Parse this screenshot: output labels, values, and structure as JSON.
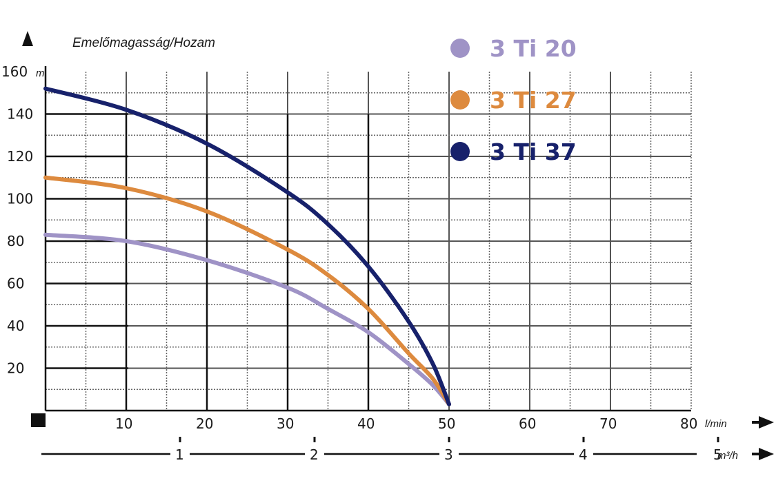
{
  "chart_data": {
    "type": "line",
    "title": "",
    "ylabel": "Emelőmagasság/Hozam",
    "yunit": "m",
    "ylim": [
      0,
      160
    ],
    "yticks": [
      20,
      40,
      60,
      80,
      100,
      120,
      140,
      160
    ],
    "xlabel": "",
    "xunit": "l/min",
    "xlim": [
      0,
      80
    ],
    "xticks": [
      10,
      20,
      30,
      40,
      50,
      60,
      70,
      80
    ],
    "x2unit": "m³/h",
    "x2ticks": [
      1,
      2,
      3,
      4,
      5
    ],
    "grid": true,
    "legend_position": "top-right",
    "series": [
      {
        "name": "3 Ti 20",
        "color": "#9f93c6",
        "x": [
          0,
          10,
          20,
          30,
          35,
          40,
          45,
          48,
          50
        ],
        "y": [
          83,
          80,
          71,
          58,
          48,
          37,
          22,
          12,
          3
        ]
      },
      {
        "name": "3 Ti 27",
        "color": "#dd8a3e",
        "x": [
          0,
          10,
          20,
          30,
          35,
          40,
          45,
          48,
          50
        ],
        "y": [
          110,
          105,
          94,
          76,
          64,
          48,
          27,
          15,
          3
        ]
      },
      {
        "name": "3 Ti 37",
        "color": "#17216b",
        "x": [
          0,
          10,
          20,
          30,
          35,
          40,
          45,
          48,
          50
        ],
        "y": [
          152,
          142,
          126,
          103,
          88,
          68,
          42,
          22,
          3
        ]
      }
    ]
  }
}
